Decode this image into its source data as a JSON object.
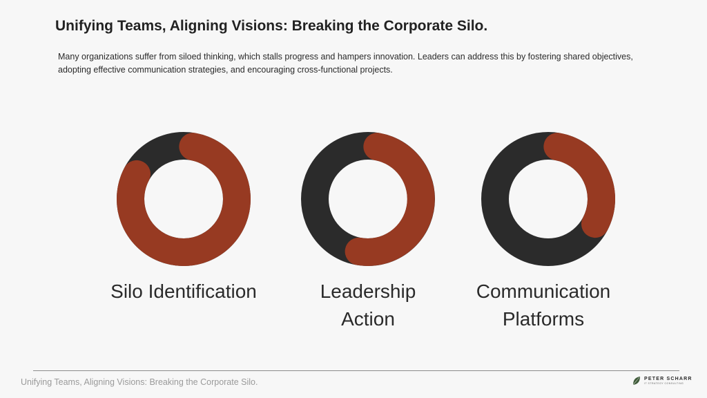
{
  "slide": {
    "title": "Unifying Teams, Aligning Visions: Breaking the Corporate Silo.",
    "intro": "Many organizations suffer from siloed thinking, which stalls progress and hampers innovation. Leaders can address this by fostering shared objectives, adopting effective communication strategies, and encouraging cross-functional projects."
  },
  "donuts": [
    {
      "label_lines": [
        "Silo Identification"
      ],
      "progress": 0.8
    },
    {
      "label_lines": [
        "Leadership",
        "Action"
      ],
      "progress": 0.5
    },
    {
      "label_lines": [
        "Communication",
        "Platforms"
      ],
      "progress": 0.3
    }
  ],
  "footer": {
    "text": "Unifying Teams, Aligning Visions: Breaking the Corporate Silo.",
    "brand_name": "PETER SCHARR",
    "brand_tagline": "IT STRATEGY CONSULTING"
  },
  "colors": {
    "track": "#2b2b2b",
    "accent": "#973a22",
    "background": "#f7f7f7"
  }
}
